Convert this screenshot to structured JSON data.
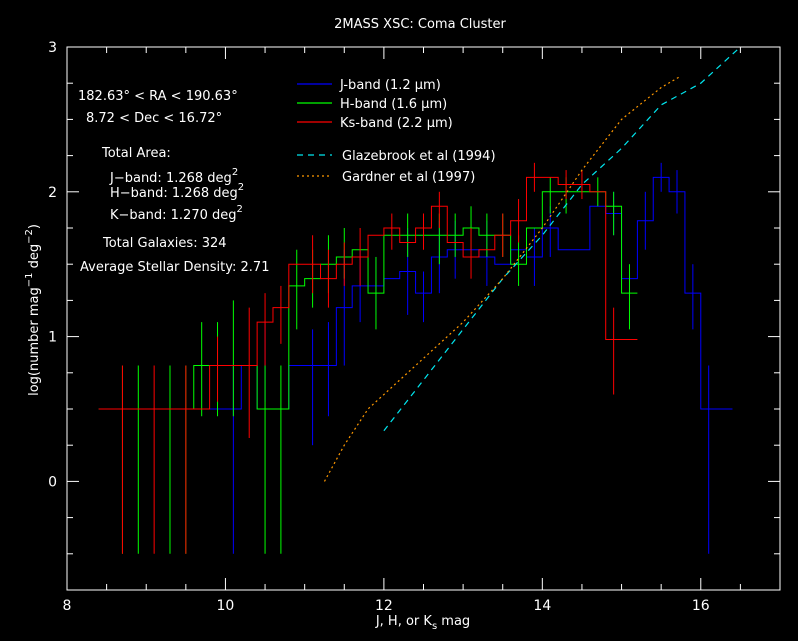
{
  "chart_data": {
    "type": "line",
    "title": "2MASS XSC: Coma Cluster",
    "xlabel_parts": [
      "J, H, or K",
      "s",
      " mag"
    ],
    "ylabel_parts": [
      "log(number mag",
      "−1",
      " deg",
      "−2",
      ")"
    ],
    "xlim": [
      8,
      17
    ],
    "ylim": [
      -0.75,
      3
    ],
    "xticks": [
      8,
      10,
      12,
      14,
      16
    ],
    "yticks": [
      0,
      1,
      2,
      3
    ],
    "grid": false,
    "legend_placement": "top-center",
    "info": {
      "ra": "182.63° < RA < 190.63°",
      "dec": "8.72 < Dec < 16.72°",
      "area_title": "Total Area:",
      "area_rows": [
        {
          "label": "J−band: 1.268 deg",
          "sup": "2"
        },
        {
          "label": "H−band: 1.268 deg",
          "sup": "2"
        },
        {
          "label": "K−band: 1.270 deg",
          "sup": "2"
        }
      ],
      "total_galaxies": "Total Galaxies: 324",
      "stellar_density": "Average Stellar Density: 2.71"
    },
    "series": [
      {
        "name": "J-band (1.2 μm)",
        "color": "#0000ff",
        "bins": [
          [
            8.4,
            0.5
          ],
          [
            8.6,
            0.5
          ],
          [
            8.8,
            0.5
          ],
          [
            9.0,
            0.5
          ],
          [
            9.2,
            0.5
          ],
          [
            9.4,
            0.5
          ],
          [
            9.6,
            0.5
          ],
          [
            9.8,
            0.5
          ],
          [
            10.0,
            0.5
          ],
          [
            10.2,
            0.8
          ],
          [
            10.4,
            0.5
          ],
          [
            10.6,
            0.5
          ],
          [
            10.8,
            0.8
          ],
          [
            11.0,
            0.8
          ],
          [
            11.2,
            0.8
          ],
          [
            11.4,
            1.2
          ],
          [
            11.6,
            1.35
          ],
          [
            11.8,
            1.35
          ],
          [
            12.0,
            1.4
          ],
          [
            12.2,
            1.45
          ],
          [
            12.4,
            1.3
          ],
          [
            12.6,
            1.55
          ],
          [
            12.8,
            1.6
          ],
          [
            13.0,
            1.6
          ],
          [
            13.2,
            1.55
          ],
          [
            13.4,
            1.5
          ],
          [
            13.6,
            1.6
          ],
          [
            13.8,
            1.55
          ],
          [
            14.0,
            1.75
          ],
          [
            14.2,
            1.6
          ],
          [
            14.4,
            1.6
          ],
          [
            14.6,
            1.9
          ],
          [
            14.8,
            1.85
          ],
          [
            15.0,
            1.4
          ],
          [
            15.2,
            1.8
          ],
          [
            15.4,
            2.1
          ],
          [
            15.6,
            2.0
          ],
          [
            15.8,
            1.3
          ],
          [
            16.0,
            0.5
          ],
          [
            16.2,
            0.5
          ]
        ],
        "errors": [
          [
            10.0,
            0.5,
            -0.5,
            0.8
          ],
          [
            10.4,
            0.8,
            0.55,
            1.1
          ],
          [
            11.0,
            0.8,
            0.25,
            1.05
          ],
          [
            11.2,
            0.8,
            0.45,
            1.1
          ],
          [
            11.4,
            1.2,
            0.8,
            1.6
          ],
          [
            11.6,
            1.35,
            1.1,
            1.6
          ],
          [
            11.8,
            1.35,
            1.15,
            1.55
          ],
          [
            12.2,
            1.45,
            1.15,
            1.75
          ],
          [
            12.4,
            1.3,
            1.1,
            1.45
          ],
          [
            12.6,
            1.55,
            1.3,
            1.8
          ],
          [
            12.8,
            1.6,
            1.4,
            1.8
          ],
          [
            13.2,
            1.55,
            1.35,
            1.8
          ],
          [
            13.8,
            1.55,
            1.35,
            1.75
          ],
          [
            14.0,
            1.75,
            1.55,
            1.9
          ],
          [
            14.8,
            1.85,
            1.7,
            2.0
          ],
          [
            15.2,
            1.8,
            1.6,
            2.0
          ],
          [
            15.4,
            2.1,
            2.0,
            2.2
          ],
          [
            15.6,
            2.0,
            1.85,
            2.15
          ],
          [
            15.8,
            1.3,
            1.05,
            1.5
          ],
          [
            16.0,
            0.5,
            -0.5,
            0.8
          ]
        ]
      },
      {
        "name": "H-band (1.6 μm)",
        "color": "#00ff00",
        "bins": [
          [
            8.4,
            0.5
          ],
          [
            8.6,
            0.5
          ],
          [
            8.8,
            0.5
          ],
          [
            9.0,
            0.5
          ],
          [
            9.2,
            0.5
          ],
          [
            9.4,
            0.5
          ],
          [
            9.6,
            0.8
          ],
          [
            9.8,
            0.8
          ],
          [
            10.0,
            0.8
          ],
          [
            10.2,
            0.8
          ],
          [
            10.4,
            0.5
          ],
          [
            10.6,
            0.5
          ],
          [
            10.8,
            1.35
          ],
          [
            11.0,
            1.4
          ],
          [
            11.2,
            1.5
          ],
          [
            11.4,
            1.55
          ],
          [
            11.6,
            1.6
          ],
          [
            11.8,
            1.3
          ],
          [
            12.0,
            1.7
          ],
          [
            12.2,
            1.7
          ],
          [
            12.4,
            1.7
          ],
          [
            12.6,
            1.7
          ],
          [
            12.8,
            1.7
          ],
          [
            13.0,
            1.75
          ],
          [
            13.2,
            1.7
          ],
          [
            13.4,
            1.7
          ],
          [
            13.6,
            1.5
          ],
          [
            13.8,
            1.75
          ],
          [
            14.0,
            2.0
          ],
          [
            14.2,
            2.0
          ],
          [
            14.4,
            2.0
          ],
          [
            14.6,
            2.0
          ],
          [
            14.8,
            1.9
          ],
          [
            15.0,
            1.3
          ]
        ],
        "errors": [
          [
            8.6,
            0.5,
            -0.5,
            0.8
          ],
          [
            8.8,
            0.5,
            -0.5,
            0.8
          ],
          [
            9.2,
            0.5,
            -0.5,
            0.8
          ],
          [
            9.4,
            0.5,
            -0.5,
            0.8
          ],
          [
            9.6,
            0.8,
            0.45,
            1.1
          ],
          [
            9.8,
            0.8,
            0.45,
            1.1
          ],
          [
            10.0,
            0.8,
            0.45,
            1.25
          ],
          [
            10.4,
            0.5,
            -0.5,
            0.8
          ],
          [
            10.6,
            0.5,
            -0.5,
            0.8
          ],
          [
            10.8,
            1.35,
            1.05,
            1.6
          ],
          [
            11.0,
            1.4,
            1.2,
            1.6
          ],
          [
            11.2,
            1.5,
            1.3,
            1.7
          ],
          [
            11.4,
            1.55,
            1.4,
            1.75
          ],
          [
            11.8,
            1.3,
            1.05,
            1.55
          ],
          [
            12.2,
            1.7,
            1.55,
            1.85
          ],
          [
            12.6,
            1.7,
            1.5,
            1.85
          ],
          [
            12.8,
            1.7,
            1.55,
            1.85
          ],
          [
            13.0,
            1.75,
            1.6,
            1.9
          ],
          [
            13.2,
            1.7,
            1.55,
            1.85
          ],
          [
            13.4,
            1.7,
            1.55,
            1.85
          ],
          [
            13.6,
            1.5,
            1.35,
            1.7
          ],
          [
            14.0,
            2.0,
            1.85,
            2.1
          ],
          [
            14.2,
            2.0,
            1.85,
            2.1
          ],
          [
            14.6,
            2.0,
            1.9,
            2.1
          ],
          [
            14.8,
            1.9,
            1.7,
            2.0
          ],
          [
            15.0,
            1.3,
            1.05,
            1.5
          ]
        ]
      },
      {
        "name": "Ks-band (2.2 μm)",
        "color": "#ff0000",
        "bins": [
          [
            8.4,
            0.5
          ],
          [
            8.6,
            0.5
          ],
          [
            8.8,
            0.5
          ],
          [
            9.0,
            0.5
          ],
          [
            9.2,
            0.5
          ],
          [
            9.4,
            0.5
          ],
          [
            9.6,
            0.5
          ],
          [
            9.8,
            0.8
          ],
          [
            10.0,
            0.8
          ],
          [
            10.2,
            0.8
          ],
          [
            10.4,
            1.1
          ],
          [
            10.6,
            1.2
          ],
          [
            10.8,
            1.5
          ],
          [
            11.0,
            1.5
          ],
          [
            11.2,
            1.4
          ],
          [
            11.4,
            1.5
          ],
          [
            11.6,
            1.55
          ],
          [
            11.8,
            1.7
          ],
          [
            12.0,
            1.75
          ],
          [
            12.2,
            1.65
          ],
          [
            12.4,
            1.75
          ],
          [
            12.6,
            1.9
          ],
          [
            12.8,
            1.65
          ],
          [
            13.0,
            1.55
          ],
          [
            13.2,
            1.6
          ],
          [
            13.4,
            1.7
          ],
          [
            13.6,
            1.8
          ],
          [
            13.8,
            2.1
          ],
          [
            14.0,
            2.1
          ],
          [
            14.2,
            2.05
          ],
          [
            14.4,
            2.05
          ],
          [
            14.6,
            2.0
          ],
          [
            14.8,
            0.98
          ],
          [
            15.0,
            0.98
          ]
        ],
        "errors": [
          [
            8.6,
            0.5,
            -0.5,
            0.8
          ],
          [
            9.0,
            0.5,
            -0.5,
            0.8
          ],
          [
            9.4,
            0.5,
            -0.5,
            0.8
          ],
          [
            9.8,
            0.8,
            0.55,
            1.0
          ],
          [
            10.2,
            0.8,
            0.3,
            1.2
          ],
          [
            10.4,
            1.1,
            0.8,
            1.3
          ],
          [
            10.6,
            1.2,
            0.95,
            1.35
          ],
          [
            11.0,
            1.5,
            1.3,
            1.7
          ],
          [
            11.2,
            1.4,
            1.2,
            1.6
          ],
          [
            11.4,
            1.5,
            1.35,
            1.65
          ],
          [
            11.6,
            1.55,
            1.35,
            1.75
          ],
          [
            12.0,
            1.75,
            1.6,
            1.85
          ],
          [
            12.4,
            1.75,
            1.6,
            1.85
          ],
          [
            12.6,
            1.9,
            1.75,
            2.0
          ],
          [
            13.0,
            1.55,
            1.4,
            1.75
          ],
          [
            13.4,
            1.7,
            1.55,
            1.85
          ],
          [
            13.6,
            1.8,
            1.65,
            1.95
          ],
          [
            13.8,
            2.1,
            2.0,
            2.2
          ],
          [
            14.2,
            2.05,
            1.95,
            2.15
          ],
          [
            14.4,
            2.05,
            1.95,
            2.15
          ],
          [
            14.8,
            0.98,
            0.6,
            1.2
          ]
        ]
      }
    ],
    "models": [
      {
        "name": "Glazebrook et al (1994)",
        "color": "#00e5ee",
        "style": "dashed",
        "points": [
          [
            12.0,
            0.35
          ],
          [
            12.5,
            0.7
          ],
          [
            13.0,
            1.05
          ],
          [
            13.5,
            1.4
          ],
          [
            14.0,
            1.7
          ],
          [
            14.5,
            2.05
          ],
          [
            15.0,
            2.3
          ],
          [
            15.5,
            2.6
          ],
          [
            16.0,
            2.75
          ],
          [
            16.5,
            3.0
          ]
        ]
      },
      {
        "name": "Gardner et al (1997)",
        "color": "#ff9900",
        "style": "dotted",
        "points": [
          [
            11.25,
            0.0
          ],
          [
            11.5,
            0.25
          ],
          [
            11.8,
            0.5
          ],
          [
            12.0,
            0.6
          ],
          [
            12.5,
            0.85
          ],
          [
            13.0,
            1.1
          ],
          [
            13.5,
            1.4
          ],
          [
            14.0,
            1.75
          ],
          [
            14.5,
            2.15
          ],
          [
            15.0,
            2.5
          ],
          [
            15.5,
            2.72
          ],
          [
            15.75,
            2.8
          ]
        ]
      }
    ]
  }
}
